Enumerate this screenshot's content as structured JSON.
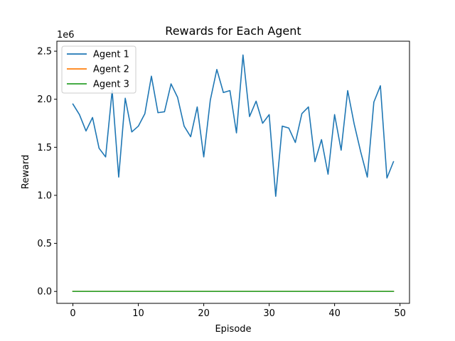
{
  "chart_data": {
    "type": "line",
    "title": "Rewards for Each Agent",
    "xlabel": "Episode",
    "ylabel": "Reward",
    "y_offset_label": "1e6",
    "xlim": [
      -2.45,
      51.45
    ],
    "ylim": [
      -0.124,
      2.604
    ],
    "y_scale_factor": 1000000,
    "x_ticks": [
      0,
      10,
      20,
      30,
      40,
      50
    ],
    "x_tick_labels": [
      "0",
      "10",
      "20",
      "30",
      "40",
      "50"
    ],
    "y_ticks": [
      0.0,
      0.5,
      1.0,
      1.5,
      2.0,
      2.5
    ],
    "y_tick_labels": [
      "0.0",
      "0.5",
      "1.0",
      "1.5",
      "2.0",
      "2.5"
    ],
    "legend_position": "top-left",
    "x": [
      0,
      1,
      2,
      3,
      4,
      5,
      6,
      7,
      8,
      9,
      10,
      11,
      12,
      13,
      14,
      15,
      16,
      17,
      18,
      19,
      20,
      21,
      22,
      23,
      24,
      25,
      26,
      27,
      28,
      29,
      30,
      31,
      32,
      33,
      34,
      35,
      36,
      37,
      38,
      39,
      40,
      41,
      42,
      43,
      44,
      45,
      46,
      47,
      48,
      49
    ],
    "series": [
      {
        "name": "Agent 1",
        "color": "#1f77b4",
        "values": [
          1.95,
          1.84,
          1.67,
          1.81,
          1.49,
          1.4,
          2.09,
          1.19,
          2.01,
          1.66,
          1.72,
          1.85,
          2.24,
          1.86,
          1.87,
          2.16,
          2.02,
          1.72,
          1.61,
          1.92,
          1.4,
          1.99,
          2.31,
          2.07,
          2.09,
          1.65,
          2.46,
          1.82,
          1.98,
          1.75,
          1.84,
          0.99,
          1.72,
          1.7,
          1.55,
          1.85,
          1.92,
          1.35,
          1.58,
          1.22,
          1.84,
          1.47,
          2.09,
          1.74,
          1.45,
          1.19,
          1.97,
          2.14,
          1.18,
          1.35
        ]
      },
      {
        "name": "Agent 2",
        "color": "#ff7f0e",
        "values": [
          0,
          0,
          0,
          0,
          0,
          0,
          0,
          0,
          0,
          0,
          0,
          0,
          0,
          0,
          0,
          0,
          0,
          0,
          0,
          0,
          0,
          0,
          0,
          0,
          0,
          0,
          0,
          0,
          0,
          0,
          0,
          0,
          0,
          0,
          0,
          0,
          0,
          0,
          0,
          0,
          0,
          0,
          0,
          0,
          0,
          0,
          0,
          0,
          0,
          0
        ]
      },
      {
        "name": "Agent 3",
        "color": "#2ca02c",
        "values": [
          0,
          0,
          0,
          0,
          0,
          0,
          0,
          0,
          0,
          0,
          0,
          0,
          0,
          0,
          0,
          0,
          0,
          0,
          0,
          0,
          0,
          0,
          0,
          0,
          0,
          0,
          0,
          0,
          0,
          0,
          0,
          0,
          0,
          0,
          0,
          0,
          0,
          0,
          0,
          0,
          0,
          0,
          0,
          0,
          0,
          0,
          0,
          0,
          0,
          0
        ]
      }
    ]
  }
}
